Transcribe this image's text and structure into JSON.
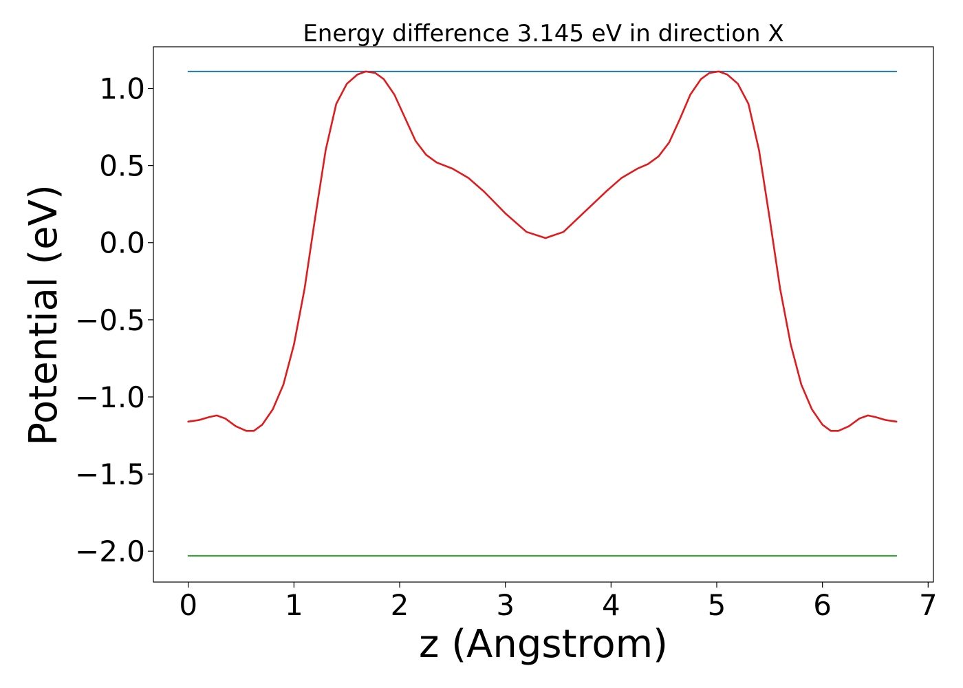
{
  "chart_data": {
    "type": "line",
    "title": "Energy difference 3.145 eV in direction X",
    "xlabel": "z (Angstrom)",
    "ylabel": "Potential (eV)",
    "xlim": [
      -0.33,
      7.05
    ],
    "ylim": [
      -2.2,
      1.27
    ],
    "xticks": [
      0,
      1,
      2,
      3,
      4,
      5,
      6,
      7
    ],
    "yticks": [
      1.0,
      0.5,
      0.0,
      -0.5,
      -1.0,
      -1.5,
      -2.0
    ],
    "xtick_labels": [
      "0",
      "1",
      "2",
      "3",
      "4",
      "5",
      "6",
      "7"
    ],
    "ytick_labels": [
      "1.0",
      "0.5",
      "0.0",
      "−0.5",
      "−1.0",
      "−1.5",
      "−2.0"
    ],
    "grid": false,
    "series": [
      {
        "color": "#1f77b4",
        "x": [
          0.0,
          6.7
        ],
        "y": [
          1.11,
          1.11
        ]
      },
      {
        "color": "#2ca02c",
        "x": [
          0.0,
          6.7
        ],
        "y": [
          -2.03,
          -2.03
        ]
      },
      {
        "color": "#e31a1c",
        "x": [
          0.0,
          0.1,
          0.2,
          0.27,
          0.35,
          0.45,
          0.55,
          0.62,
          0.7,
          0.8,
          0.9,
          1.0,
          1.1,
          1.2,
          1.3,
          1.4,
          1.5,
          1.6,
          1.68,
          1.77,
          1.85,
          1.95,
          2.05,
          2.15,
          2.25,
          2.35,
          2.5,
          2.65,
          2.8,
          3.0,
          3.2,
          3.38,
          3.55,
          3.75,
          3.95,
          4.1,
          4.25,
          4.35,
          4.45,
          4.55,
          4.65,
          4.75,
          4.85,
          4.93,
          5.02,
          5.1,
          5.2,
          5.3,
          5.4,
          5.5,
          5.6,
          5.7,
          5.8,
          5.9,
          6.0,
          6.08,
          6.15,
          6.25,
          6.35,
          6.43,
          6.5,
          6.6,
          6.7
        ],
        "y": [
          -1.16,
          -1.15,
          -1.13,
          -1.12,
          -1.14,
          -1.19,
          -1.22,
          -1.22,
          -1.18,
          -1.08,
          -0.92,
          -0.66,
          -0.3,
          0.16,
          0.6,
          0.9,
          1.03,
          1.09,
          1.11,
          1.1,
          1.06,
          0.96,
          0.81,
          0.66,
          0.57,
          0.52,
          0.48,
          0.42,
          0.33,
          0.19,
          0.07,
          0.03,
          0.07,
          0.2,
          0.33,
          0.42,
          0.48,
          0.51,
          0.56,
          0.65,
          0.8,
          0.96,
          1.06,
          1.1,
          1.11,
          1.09,
          1.03,
          0.9,
          0.6,
          0.16,
          -0.3,
          -0.66,
          -0.92,
          -1.08,
          -1.18,
          -1.22,
          -1.22,
          -1.19,
          -1.14,
          -1.12,
          -1.13,
          -1.15,
          -1.16
        ]
      }
    ]
  }
}
